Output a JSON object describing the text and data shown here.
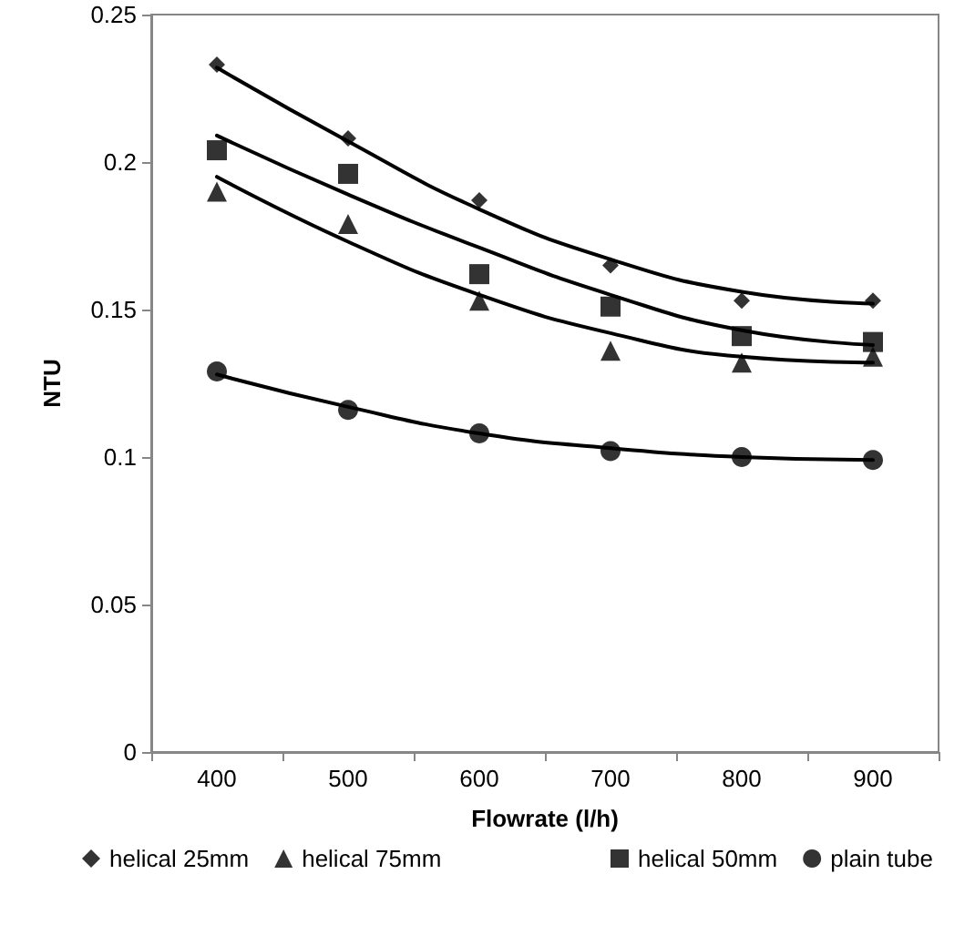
{
  "chart_data": {
    "type": "scatter",
    "xlabel": "Flowrate (l/h)",
    "ylabel": "NTU",
    "categories": [
      "400",
      "500",
      "600",
      "700",
      "800",
      "900"
    ],
    "ylim": [
      0,
      0.25
    ],
    "yticks": [
      0,
      0.05,
      0.1,
      0.15,
      0.2,
      0.25
    ],
    "grid": false,
    "legend": "bottom",
    "series": [
      {
        "name": "helical 25mm",
        "color": "#000000",
        "marker": "diamond",
        "values": [
          0.233,
          0.208,
          0.187,
          0.165,
          0.153,
          0.153
        ]
      },
      {
        "name": "helical 50mm",
        "color": "#000000",
        "marker": "square",
        "values": [
          0.204,
          0.196,
          0.162,
          0.151,
          0.141,
          0.139
        ]
      },
      {
        "name": "helical 75mm",
        "color": "#000000",
        "marker": "triangle",
        "values": [
          0.19,
          0.179,
          0.153,
          0.136,
          0.132,
          0.134
        ]
      },
      {
        "name": "plain tube",
        "color": "#000000",
        "marker": "circle",
        "values": [
          0.129,
          0.116,
          0.108,
          0.102,
          0.1,
          0.099
        ]
      },
      {
        "type": "line",
        "color": "#000000",
        "marker": "none",
        "line_style": "solid",
        "x": [
          "400",
          "500",
          "600",
          "700",
          "800",
          "900"
        ],
        "values": [
          0.232,
          0.207,
          0.184,
          0.167,
          0.156,
          0.152
        ]
      },
      {
        "type": "line",
        "color": "#000000",
        "marker": "none",
        "line_style": "solid",
        "x": [
          "400",
          "500",
          "600",
          "700",
          "800",
          "900"
        ],
        "values": [
          0.209,
          0.189,
          0.171,
          0.155,
          0.143,
          0.138
        ]
      },
      {
        "type": "line",
        "color": "#000000",
        "marker": "none",
        "line_style": "solid",
        "x": [
          "400",
          "500",
          "600",
          "700",
          "800",
          "900"
        ],
        "values": [
          0.195,
          0.173,
          0.155,
          0.142,
          0.134,
          0.132
        ]
      },
      {
        "type": "line",
        "color": "#000000",
        "marker": "none",
        "line_style": "solid",
        "x": [
          "400",
          "500",
          "600",
          "700",
          "800",
          "900"
        ],
        "values": [
          0.128,
          0.117,
          0.108,
          0.103,
          0.1,
          0.099
        ]
      }
    ]
  }
}
